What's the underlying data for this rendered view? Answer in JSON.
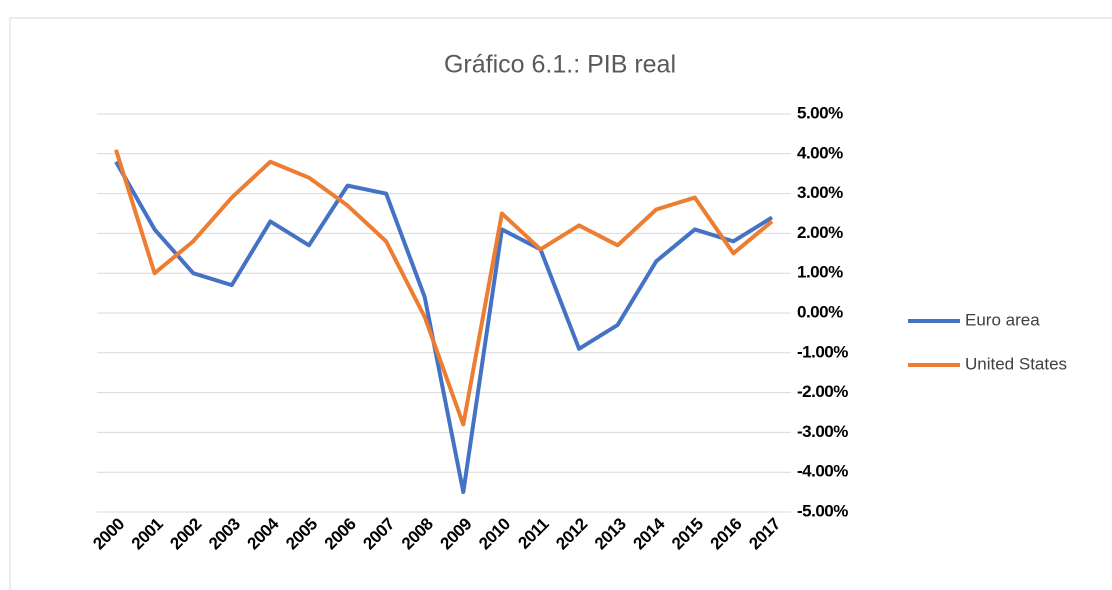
{
  "chart_data": {
    "type": "line",
    "title": "Gráfico 6.1.: PIB real",
    "categories": [
      "2000",
      "2001",
      "2002",
      "2003",
      "2004",
      "2005",
      "2006",
      "2007",
      "2008",
      "2009",
      "2010",
      "2011",
      "2012",
      "2013",
      "2014",
      "2015",
      "2016",
      "2017"
    ],
    "series": [
      {
        "name": "Euro area",
        "color": "#4472c4",
        "values": [
          3.8,
          2.1,
          1.0,
          0.7,
          2.3,
          1.7,
          3.2,
          3.0,
          0.4,
          -4.5,
          2.1,
          1.6,
          -0.9,
          -0.3,
          1.3,
          2.1,
          1.8,
          2.4
        ]
      },
      {
        "name": "United States",
        "color": "#ed7d31",
        "values": [
          4.1,
          1.0,
          1.8,
          2.9,
          3.8,
          3.4,
          2.7,
          1.8,
          -0.1,
          -2.8,
          2.5,
          1.6,
          2.2,
          1.7,
          2.6,
          2.9,
          1.5,
          2.3
        ]
      }
    ],
    "ylim": [
      -5,
      5
    ],
    "yticks": [
      {
        "value": 5,
        "label": "5.00%"
      },
      {
        "value": 4,
        "label": "4.00%"
      },
      {
        "value": 3,
        "label": "3.00%"
      },
      {
        "value": 2,
        "label": "2.00%"
      },
      {
        "value": 1,
        "label": "1.00%"
      },
      {
        "value": 0,
        "label": "0.00%"
      },
      {
        "value": -1,
        "label": "-1.00%"
      },
      {
        "value": -2,
        "label": "-2.00%"
      },
      {
        "value": -3,
        "label": "-3.00%"
      },
      {
        "value": -4,
        "label": "-4.00%"
      },
      {
        "value": -5,
        "label": "-5.00%"
      }
    ],
    "grid": true,
    "legend": "right"
  }
}
